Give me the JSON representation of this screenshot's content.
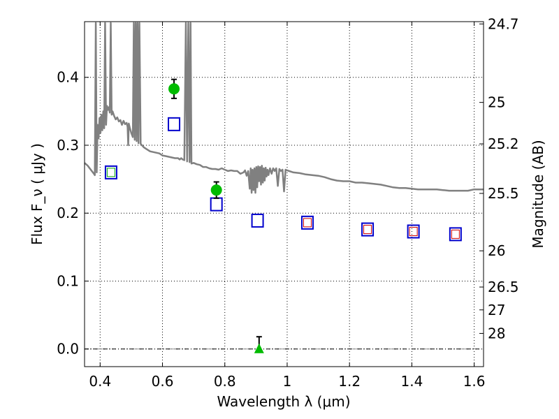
{
  "chart_data": {
    "type": "scatter",
    "xlabel": "Wavelength  λ (μm)",
    "ylabel": "Flux  F_ν  ( μJy )",
    "ylabel_right": "Magnitude (AB)",
    "xlim": [
      0.35,
      1.63
    ],
    "ylim": [
      -0.026,
      0.482
    ],
    "grid": true,
    "x_ticks": [
      {
        "value": 0.4,
        "label": "0.4"
      },
      {
        "value": 0.6,
        "label": "0.6"
      },
      {
        "value": 0.8,
        "label": "0.8"
      },
      {
        "value": 1.0,
        "label": "1"
      },
      {
        "value": 1.2,
        "label": "1.2"
      },
      {
        "value": 1.4,
        "label": "1.4"
      },
      {
        "value": 1.6,
        "label": "1.6"
      }
    ],
    "y_ticks": [
      {
        "value": 0.0,
        "label": "0.0"
      },
      {
        "value": 0.1,
        "label": "0.1"
      },
      {
        "value": 0.2,
        "label": "0.2"
      },
      {
        "value": 0.3,
        "label": "0.3"
      },
      {
        "value": 0.4,
        "label": "0.4"
      }
    ],
    "right_ticks": [
      {
        "mag": 24.7,
        "label": "24.7"
      },
      {
        "mag": 25.0,
        "label": "25"
      },
      {
        "mag": 25.2,
        "label": "25.2"
      },
      {
        "mag": 25.5,
        "label": "25.5"
      },
      {
        "mag": 26.0,
        "label": "26"
      },
      {
        "mag": 26.5,
        "label": "26.5"
      },
      {
        "mag": 27.0,
        "label": "27"
      },
      {
        "mag": 28.0,
        "label": "28"
      }
    ],
    "colors": {
      "spectrum": "#808080",
      "model_box": "#0000cc",
      "model_inner_red": "#cc0000",
      "model_inner_green": "#00aa00",
      "detection": "#00bb00",
      "errorbar": "#000000",
      "grid": "#000000"
    },
    "series": [
      {
        "kind": "line",
        "points": [
          [
            0.35,
            0.274
          ],
          [
            0.36,
            0.27
          ],
          [
            0.37,
            0.264
          ],
          [
            0.38,
            0.258
          ],
          [
            0.383,
            0.256
          ],
          [
            0.386,
            0.48
          ],
          [
            0.389,
            0.26
          ],
          [
            0.392,
            0.33
          ],
          [
            0.395,
            0.31
          ],
          [
            0.398,
            0.34
          ],
          [
            0.401,
            0.318
          ],
          [
            0.404,
            0.345
          ],
          [
            0.407,
            0.322
          ],
          [
            0.41,
            0.35
          ],
          [
            0.413,
            0.325
          ],
          [
            0.416,
            0.48
          ],
          [
            0.419,
            0.33
          ],
          [
            0.422,
            0.358
          ],
          [
            0.425,
            0.352
          ],
          [
            0.428,
            0.356
          ],
          [
            0.431,
            0.348
          ],
          [
            0.434,
            0.48
          ],
          [
            0.437,
            0.345
          ],
          [
            0.44,
            0.35
          ],
          [
            0.445,
            0.343
          ],
          [
            0.45,
            0.338
          ],
          [
            0.455,
            0.341
          ],
          [
            0.46,
            0.335
          ],
          [
            0.465,
            0.337
          ],
          [
            0.47,
            0.33
          ],
          [
            0.475,
            0.336
          ],
          [
            0.48,
            0.331
          ],
          [
            0.485,
            0.333
          ],
          [
            0.488,
            0.327
          ],
          [
            0.49,
            0.3
          ],
          [
            0.492,
            0.332
          ],
          [
            0.495,
            0.326
          ],
          [
            0.5,
            0.318
          ],
          [
            0.505,
            0.312
          ],
          [
            0.508,
            0.48
          ],
          [
            0.511,
            0.308
          ],
          [
            0.514,
            0.48
          ],
          [
            0.517,
            0.306
          ],
          [
            0.52,
            0.48
          ],
          [
            0.523,
            0.303
          ],
          [
            0.526,
            0.48
          ],
          [
            0.53,
            0.302
          ],
          [
            0.54,
            0.297
          ],
          [
            0.55,
            0.294
          ],
          [
            0.56,
            0.291
          ],
          [
            0.57,
            0.29
          ],
          [
            0.58,
            0.289
          ],
          [
            0.59,
            0.288
          ],
          [
            0.6,
            0.285
          ],
          [
            0.61,
            0.284
          ],
          [
            0.62,
            0.283
          ],
          [
            0.63,
            0.282
          ],
          [
            0.64,
            0.281
          ],
          [
            0.65,
            0.281
          ],
          [
            0.655,
            0.279
          ],
          [
            0.66,
            0.281
          ],
          [
            0.665,
            0.279
          ],
          [
            0.67,
            0.278
          ],
          [
            0.675,
            0.48
          ],
          [
            0.679,
            0.276
          ],
          [
            0.683,
            0.48
          ],
          [
            0.687,
            0.275
          ],
          [
            0.69,
            0.48
          ],
          [
            0.693,
            0.273
          ],
          [
            0.7,
            0.274
          ],
          [
            0.71,
            0.272
          ],
          [
            0.72,
            0.271
          ],
          [
            0.73,
            0.268
          ],
          [
            0.74,
            0.268
          ],
          [
            0.75,
            0.266
          ],
          [
            0.76,
            0.265
          ],
          [
            0.77,
            0.265
          ],
          [
            0.78,
            0.264
          ],
          [
            0.79,
            0.266
          ],
          [
            0.8,
            0.264
          ],
          [
            0.81,
            0.262
          ],
          [
            0.82,
            0.263
          ],
          [
            0.83,
            0.262
          ],
          [
            0.84,
            0.262
          ],
          [
            0.85,
            0.258
          ],
          [
            0.86,
            0.26
          ],
          [
            0.865,
            0.263
          ],
          [
            0.87,
            0.255
          ],
          [
            0.875,
            0.262
          ],
          [
            0.88,
            0.236
          ],
          [
            0.883,
            0.266
          ],
          [
            0.886,
            0.23
          ],
          [
            0.889,
            0.264
          ],
          [
            0.892,
            0.234
          ],
          [
            0.895,
            0.266
          ],
          [
            0.898,
            0.23
          ],
          [
            0.901,
            0.268
          ],
          [
            0.904,
            0.238
          ],
          [
            0.907,
            0.269
          ],
          [
            0.91,
            0.247
          ],
          [
            0.913,
            0.268
          ],
          [
            0.916,
            0.242
          ],
          [
            0.919,
            0.27
          ],
          [
            0.922,
            0.245
          ],
          [
            0.925,
            0.266
          ],
          [
            0.928,
            0.248
          ],
          [
            0.931,
            0.267
          ],
          [
            0.934,
            0.254
          ],
          [
            0.937,
            0.264
          ],
          [
            0.94,
            0.256
          ],
          [
            0.945,
            0.266
          ],
          [
            0.95,
            0.258
          ],
          [
            0.955,
            0.266
          ],
          [
            0.96,
            0.262
          ],
          [
            0.965,
            0.266
          ],
          [
            0.97,
            0.24
          ],
          [
            0.975,
            0.265
          ],
          [
            0.98,
            0.262
          ],
          [
            0.985,
            0.264
          ],
          [
            0.99,
            0.232
          ],
          [
            0.995,
            0.264
          ],
          [
            1.0,
            0.263
          ],
          [
            1.02,
            0.26
          ],
          [
            1.04,
            0.259
          ],
          [
            1.06,
            0.257
          ],
          [
            1.08,
            0.256
          ],
          [
            1.1,
            0.255
          ],
          [
            1.12,
            0.253
          ],
          [
            1.14,
            0.25
          ],
          [
            1.16,
            0.248
          ],
          [
            1.18,
            0.247
          ],
          [
            1.2,
            0.247
          ],
          [
            1.22,
            0.245
          ],
          [
            1.24,
            0.245
          ],
          [
            1.26,
            0.244
          ],
          [
            1.28,
            0.243
          ],
          [
            1.3,
            0.242
          ],
          [
            1.32,
            0.24
          ],
          [
            1.34,
            0.238
          ],
          [
            1.36,
            0.237
          ],
          [
            1.38,
            0.237
          ],
          [
            1.4,
            0.236
          ],
          [
            1.42,
            0.235
          ],
          [
            1.44,
            0.235
          ],
          [
            1.46,
            0.235
          ],
          [
            1.48,
            0.235
          ],
          [
            1.5,
            0.234
          ],
          [
            1.52,
            0.233
          ],
          [
            1.54,
            0.233
          ],
          [
            1.56,
            0.233
          ],
          [
            1.58,
            0.233
          ],
          [
            1.6,
            0.235
          ],
          [
            1.63,
            0.235
          ]
        ]
      },
      {
        "kind": "model_box",
        "points": [
          {
            "x": 0.435,
            "y": 0.26,
            "inner": "green"
          },
          {
            "x": 0.637,
            "y": 0.331,
            "inner": "none"
          },
          {
            "x": 0.773,
            "y": 0.213,
            "inner": "none"
          },
          {
            "x": 0.905,
            "y": 0.189,
            "inner": "none"
          },
          {
            "x": 1.065,
            "y": 0.186,
            "inner": "red"
          },
          {
            "x": 1.258,
            "y": 0.176,
            "inner": "red"
          },
          {
            "x": 1.405,
            "y": 0.173,
            "inner": "red"
          },
          {
            "x": 1.54,
            "y": 0.169,
            "inner": "red"
          }
        ]
      },
      {
        "kind": "detection",
        "points": [
          {
            "x": 0.637,
            "y": 0.383,
            "err": 0.014
          },
          {
            "x": 0.773,
            "y": 0.234,
            "err": 0.012
          }
        ]
      },
      {
        "kind": "upper_limit",
        "points": [
          {
            "x": 0.91,
            "y": 0.0,
            "err": 0.018
          }
        ]
      }
    ],
    "reference_line": {
      "y": 0.0,
      "style": "dash-dot"
    }
  }
}
